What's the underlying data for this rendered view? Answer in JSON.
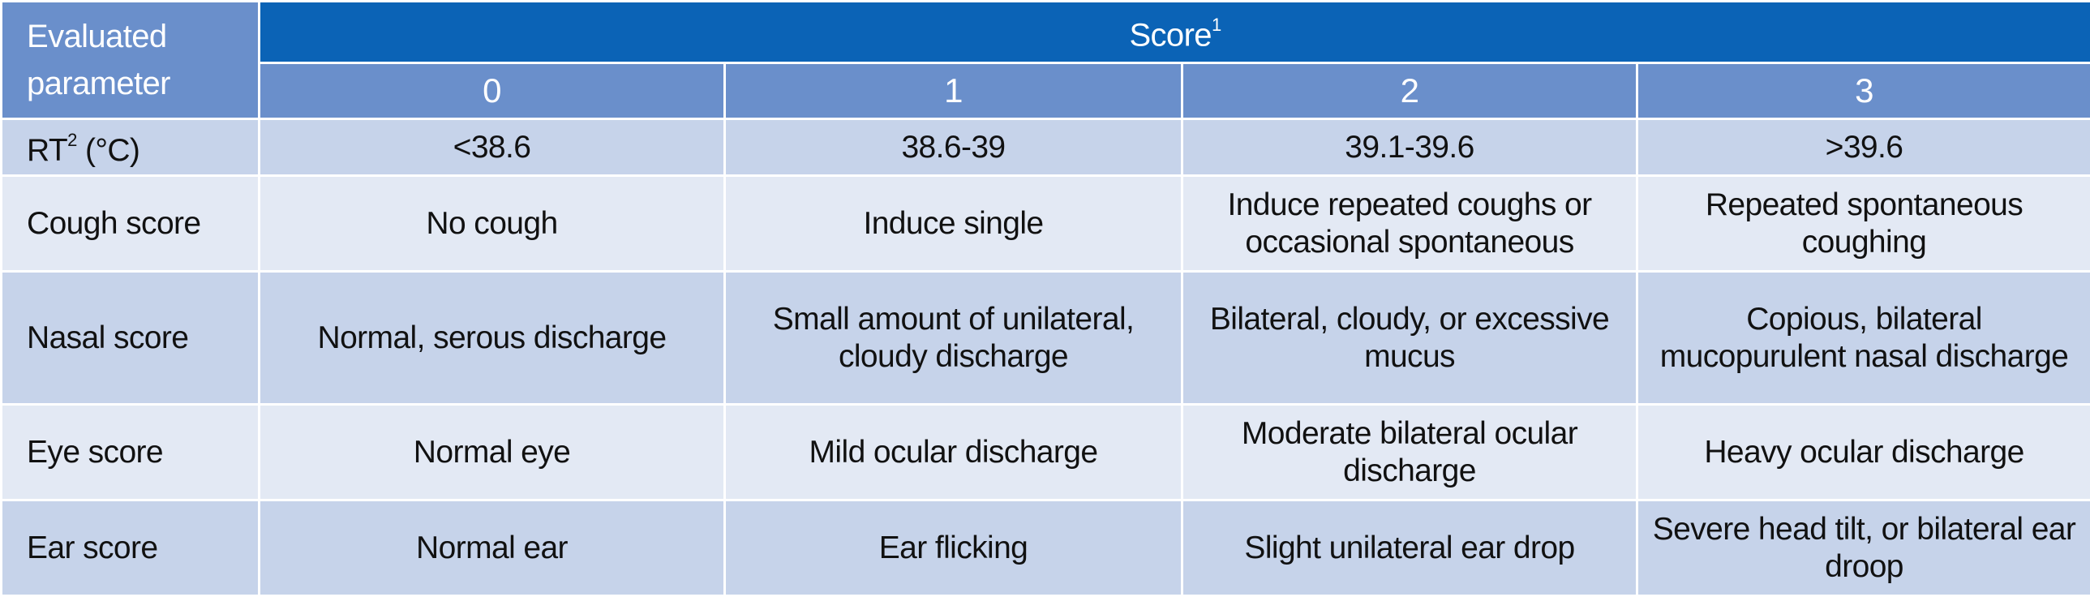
{
  "table": {
    "corner_header": "Evaluated parameter",
    "score_header": "Score",
    "score_footnote": "1",
    "columns": [
      "0",
      "1",
      "2",
      "3"
    ],
    "rows": [
      {
        "label": "RT",
        "label_footnote": "2",
        "label_suffix": " (°C)",
        "cells": [
          "<38.6",
          "38.6-39",
          "39.1-39.6",
          ">39.6"
        ]
      },
      {
        "label": "Cough score",
        "cells": [
          "No cough",
          "Induce single",
          "Induce repeated coughs or occasional spontaneous",
          "Repeated spontaneous coughing"
        ]
      },
      {
        "label": "Nasal score",
        "cells": [
          "Normal, serous discharge",
          "Small amount of unilateral, cloudy discharge",
          "Bilateral, cloudy, or excessive mucus",
          "Copious, bilateral mucopurulent nasal discharge"
        ]
      },
      {
        "label": "Eye score",
        "cells": [
          "Normal eye",
          "Mild ocular discharge",
          "Moderate bilateral ocular discharge",
          "Heavy ocular discharge"
        ]
      },
      {
        "label": "Ear score",
        "cells": [
          "Normal ear",
          "Ear flicking",
          "Slight unilateral ear drop",
          "Severe head tilt, or bilateral ear droop"
        ]
      }
    ]
  }
}
